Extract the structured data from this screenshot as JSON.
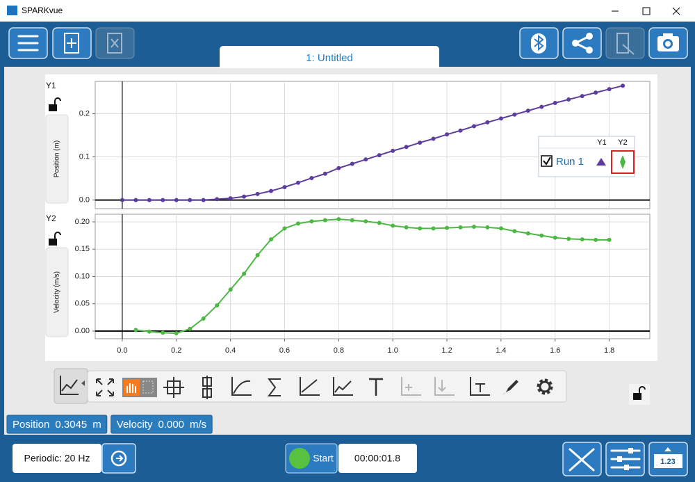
{
  "window": {
    "title": "SPARKvue"
  },
  "tab": {
    "label": "1: Untitled"
  },
  "legend": {
    "columns": [
      "Y1",
      "Y2"
    ]
  },
  "chart_data": [
    {
      "type": "line",
      "y_axis_name": "Y1",
      "y_label": "Position (m)",
      "xlim": [
        -0.1,
        1.95
      ],
      "ylim": [
        -0.02,
        0.275
      ],
      "yticks": [
        {
          "value": 0,
          "label": "0.0"
        },
        0.1,
        0.2
      ],
      "grid": true,
      "series": [
        {
          "name": "Run 1",
          "color": "#5c3d9e",
          "x": [
            0,
            0.05,
            0.1,
            0.15,
            0.2,
            0.25,
            0.3,
            0.35,
            0.4,
            0.45,
            0.5,
            0.55,
            0.6,
            0.65,
            0.7,
            0.75,
            0.8,
            0.85,
            0.9,
            0.95,
            1.0,
            1.05,
            1.1,
            1.15,
            1.2,
            1.25,
            1.3,
            1.35,
            1.4,
            1.45,
            1.5,
            1.55,
            1.6,
            1.65,
            1.7,
            1.75,
            1.8,
            1.85
          ],
          "values": [
            0,
            0,
            0,
            0,
            0,
            0,
            0,
            0.002,
            0.004,
            0.008,
            0.014,
            0.021,
            0.03,
            0.04,
            0.051,
            0.061,
            0.074,
            0.084,
            0.094,
            0.104,
            0.114,
            0.123,
            0.133,
            0.142,
            0.152,
            0.161,
            0.171,
            0.18,
            0.189,
            0.198,
            0.207,
            0.216,
            0.225,
            0.233,
            0.241,
            0.249,
            0.257,
            0.265
          ]
        }
      ]
    },
    {
      "type": "line",
      "y_axis_name": "Y2",
      "y_label": "Velocity (m/s)",
      "xlim": [
        -0.1,
        1.95
      ],
      "ylim": [
        -0.014,
        0.214
      ],
      "xticks": [
        {
          "value": 0,
          "label": "0.0"
        },
        0.2,
        0.4,
        0.6,
        0.8,
        {
          "value": 1,
          "label": "1.0"
        },
        1.2,
        1.4,
        1.6,
        1.8
      ],
      "yticks": [
        {
          "value": 0,
          "label": "0.00"
        },
        {
          "value": 0.05,
          "label": "0.05"
        },
        {
          "value": 0.1,
          "label": "0.10"
        },
        {
          "value": 0.15,
          "label": "0.15"
        },
        {
          "value": 0.2,
          "label": "0.20"
        }
      ],
      "grid": true,
      "series": [
        {
          "color": "#4cb843",
          "x": [
            0.05,
            0.1,
            0.15,
            0.2,
            0.25,
            0.3,
            0.35,
            0.4,
            0.45,
            0.5,
            0.55,
            0.6,
            0.65,
            0.7,
            0.75,
            0.8,
            0.85,
            0.9,
            0.95,
            1.0,
            1.05,
            1.1,
            1.15,
            1.2,
            1.25,
            1.3,
            1.35,
            1.4,
            1.45,
            1.5,
            1.55,
            1.6,
            1.65,
            1.7,
            1.75,
            1.8
          ],
          "values": [
            0.002,
            -0.001,
            -0.003,
            -0.004,
            0.004,
            0.023,
            0.047,
            0.076,
            0.105,
            0.139,
            0.168,
            0.188,
            0.197,
            0.201,
            0.203,
            0.205,
            0.203,
            0.201,
            0.198,
            0.193,
            0.19,
            0.188,
            0.188,
            0.189,
            0.19,
            0.191,
            0.19,
            0.188,
            0.183,
            0.179,
            0.175,
            0.171,
            0.169,
            0.168,
            0.167,
            0.167
          ]
        }
      ]
    }
  ],
  "status": [
    {
      "label": "Position",
      "value": "0.3045",
      "unit": "m"
    },
    {
      "label": "Velocity",
      "value": "0.000",
      "unit": "m/s"
    }
  ],
  "bottom_bar": {
    "sample_rate": "Periodic: 20 Hz",
    "start": "Start",
    "timer": "00:00:01.8",
    "display_icon": "1.23"
  }
}
